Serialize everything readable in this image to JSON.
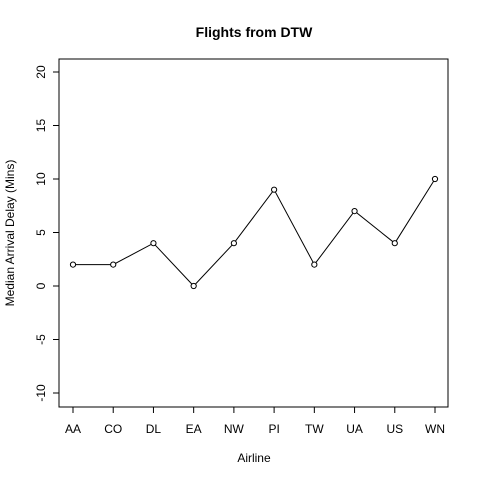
{
  "chart_data": {
    "type": "line",
    "title": "Flights from DTW",
    "xlabel": "Airline",
    "ylabel": "Median Arrival Delay (Mins)",
    "categories": [
      "AA",
      "CO",
      "DL",
      "EA",
      "NW",
      "PI",
      "TW",
      "UA",
      "US",
      "WN"
    ],
    "series": [
      {
        "values": [
          2,
          2,
          4,
          0,
          4,
          9,
          2,
          7,
          4,
          10
        ]
      }
    ],
    "ylim": [
      -10,
      20
    ],
    "yticks": [
      -10,
      -5,
      0,
      5,
      10,
      15,
      20
    ],
    "ytick_labels": [
      "-10",
      "-5",
      "0",
      "5",
      "10",
      "15",
      "20"
    ],
    "grid": false,
    "markers": "open-circle",
    "line_color": "#000000"
  }
}
